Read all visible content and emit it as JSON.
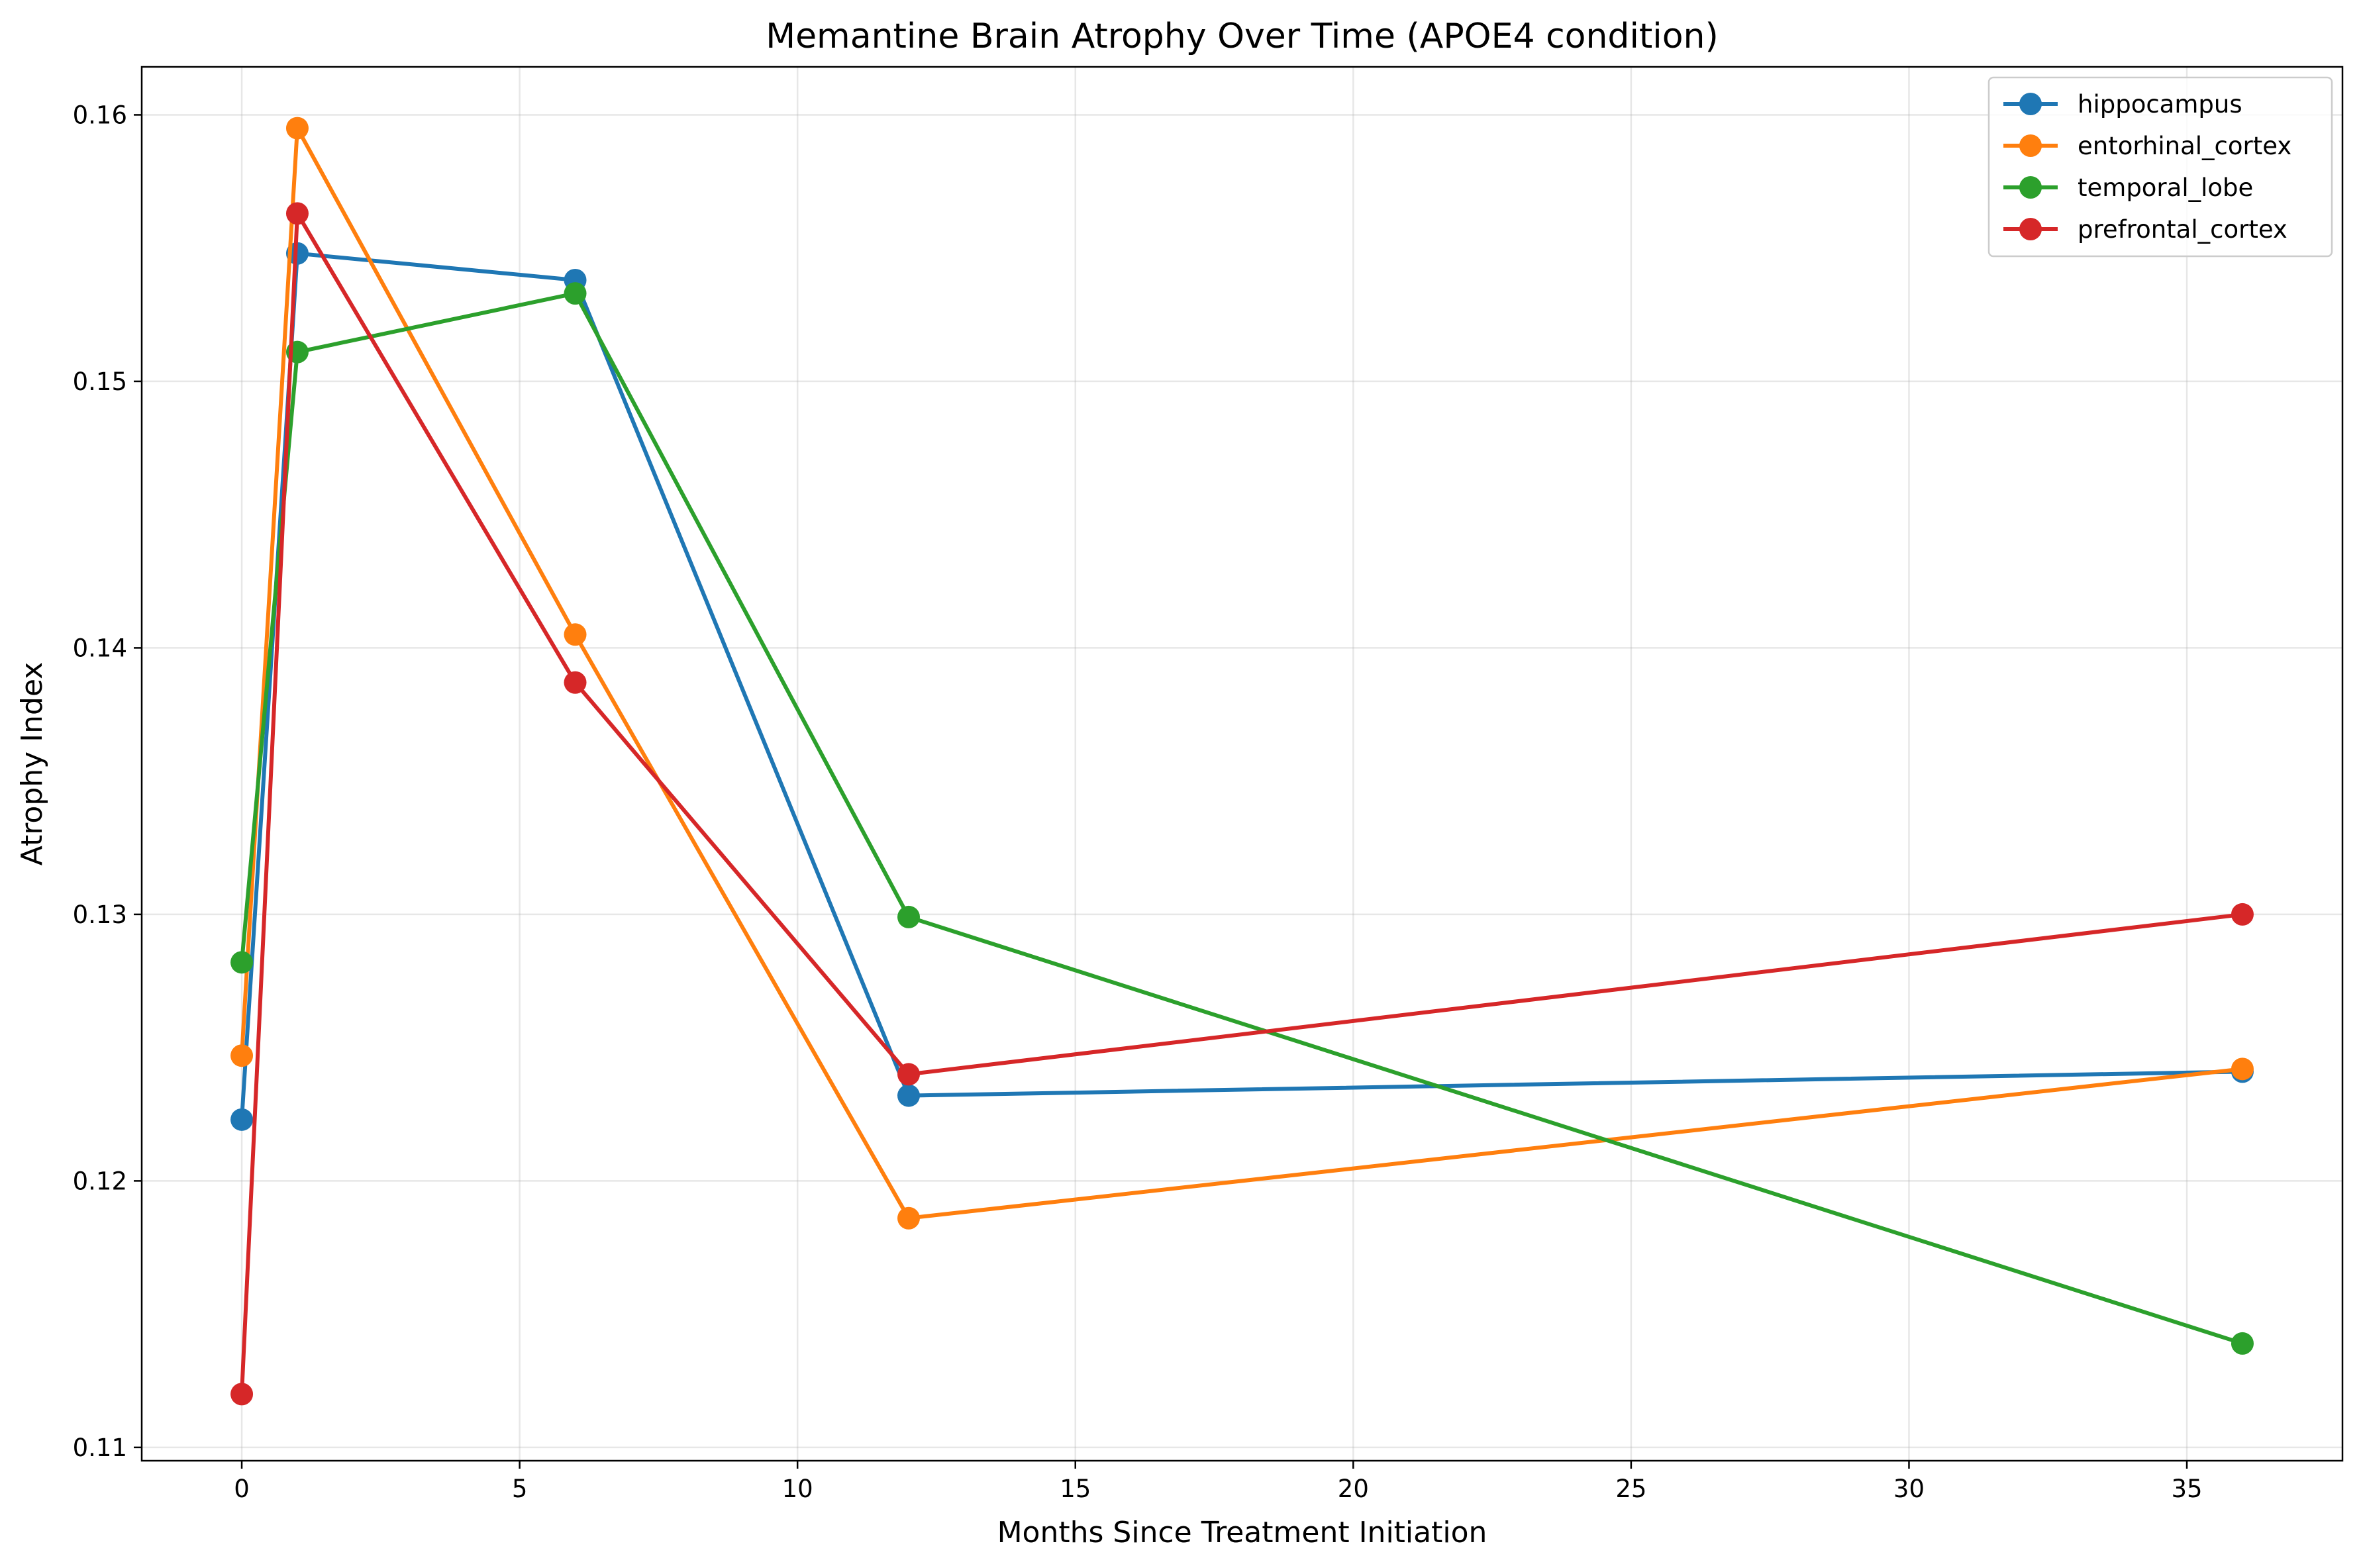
{
  "chart_data": {
    "type": "line",
    "title": "Memantine Brain Atrophy Over Time (APOE4 condition)",
    "xlabel": "Months Since Treatment Initiation",
    "ylabel": "Atrophy Index",
    "x": [
      0,
      1,
      6,
      12,
      36
    ],
    "xlim": [
      -1.8,
      37.8
    ],
    "ylim": [
      0.1095,
      0.1618
    ],
    "xticks": [
      0,
      5,
      10,
      15,
      20,
      25,
      30,
      35
    ],
    "yticks": [
      0.11,
      0.12,
      0.13,
      0.14,
      0.15,
      0.16
    ],
    "xtick_labels": [
      "0",
      "5",
      "10",
      "15",
      "20",
      "25",
      "30",
      "35"
    ],
    "ytick_labels": [
      "0.11",
      "0.12",
      "0.13",
      "0.14",
      "0.15",
      "0.16"
    ],
    "grid": true,
    "legend_position": "top-right",
    "series": [
      {
        "name": "hippocampus",
        "color": "#1f77b4",
        "values": [
          0.1223,
          0.1548,
          0.1538,
          0.1232,
          0.1241
        ]
      },
      {
        "name": "entorhinal_cortex",
        "color": "#ff7f0e",
        "values": [
          0.1247,
          0.1595,
          0.1405,
          0.1186,
          0.1242
        ]
      },
      {
        "name": "temporal_lobe",
        "color": "#2ca02c",
        "values": [
          0.1282,
          0.1511,
          0.1533,
          0.1299,
          0.1139
        ]
      },
      {
        "name": "prefrontal_cortex",
        "color": "#d62728",
        "values": [
          0.112,
          0.1563,
          0.1387,
          0.124,
          0.13
        ]
      }
    ]
  }
}
